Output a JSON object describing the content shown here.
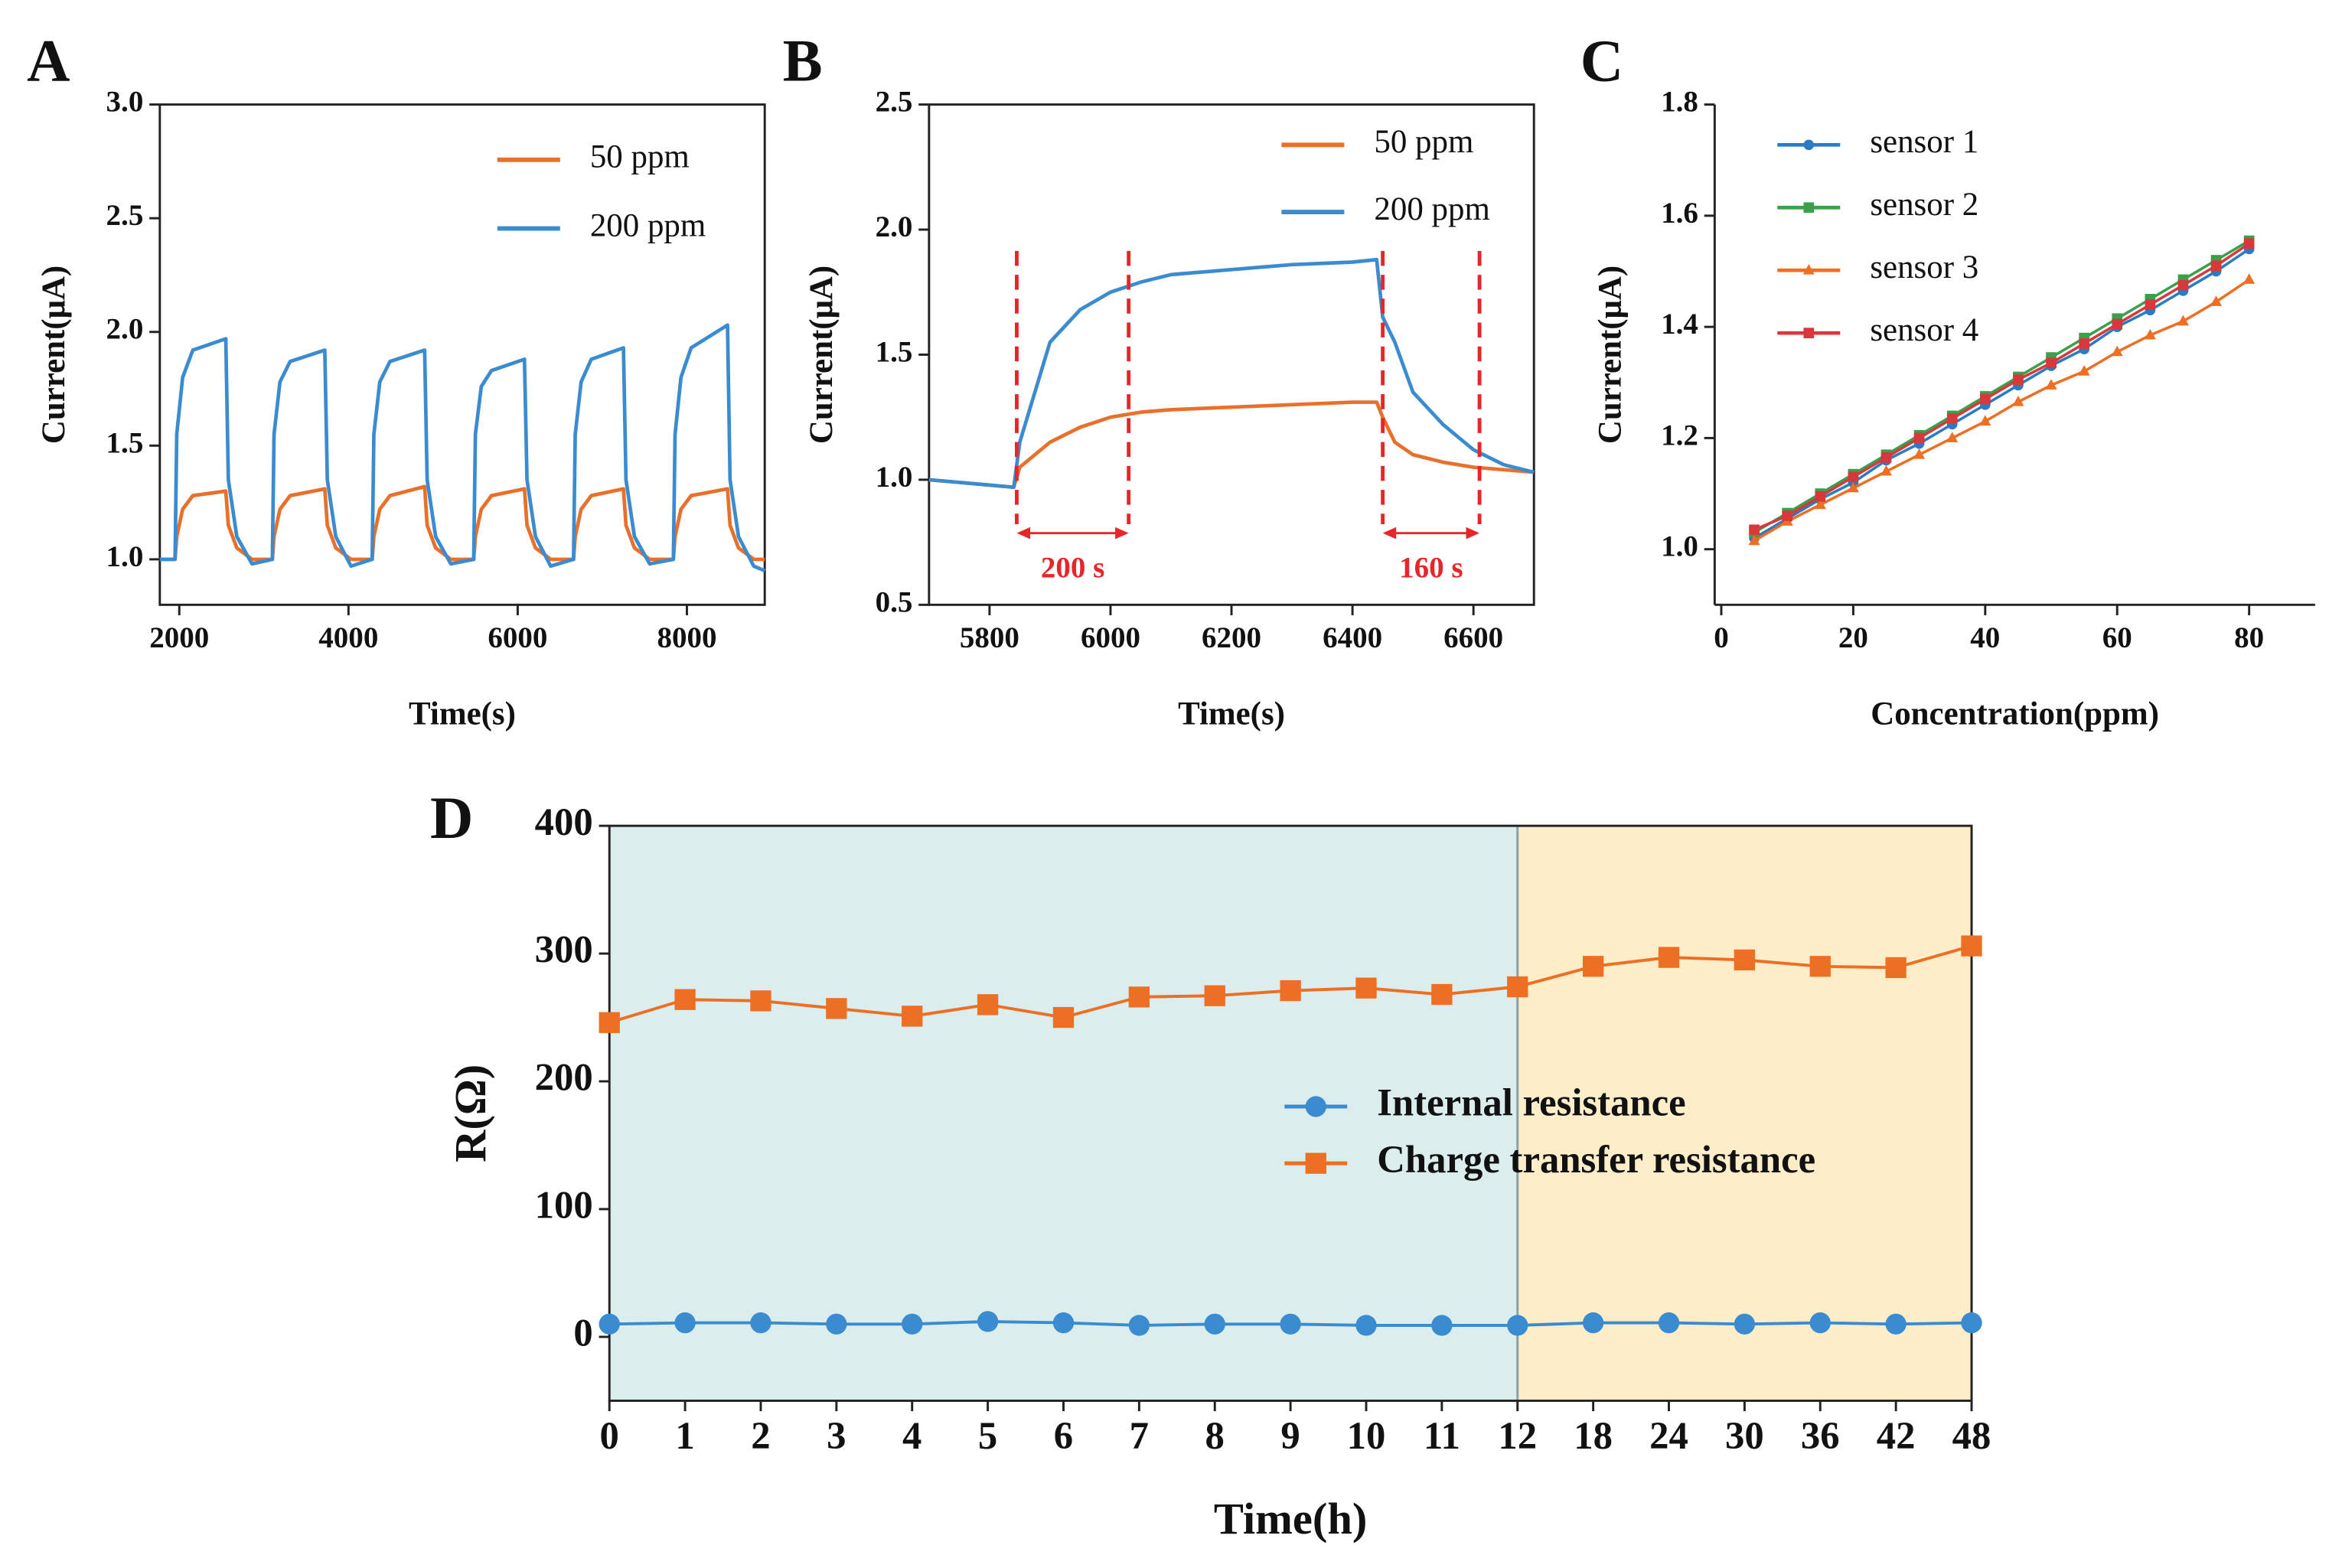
{
  "chart_data": [
    {
      "type": "line",
      "label": "A",
      "xlabel": "Time(s)",
      "ylabel": "Current(μA)",
      "xlim": [
        1770,
        8920
      ],
      "xticks": [
        2000,
        4000,
        6000,
        8000
      ],
      "ylim": [
        0.8,
        3.0
      ],
      "yticks": [
        {
          "value": 1,
          "label": "1.0"
        },
        1.5,
        {
          "value": 2,
          "label": "2.0"
        },
        2.5,
        {
          "value": 3,
          "label": "3.0"
        }
      ],
      "x": [
        1770,
        1950,
        1970,
        2040,
        2160,
        2550,
        2580,
        2680,
        2860,
        3100,
        3120,
        3190,
        3310,
        3720,
        3750,
        3850,
        4030,
        4280,
        4300,
        4370,
        4490,
        4900,
        4930,
        5030,
        5210,
        5480,
        5500,
        5570,
        5690,
        6080,
        6110,
        6210,
        6390,
        6660,
        6680,
        6750,
        6870,
        7250,
        7280,
        7380,
        7560,
        7840,
        7860,
        7930,
        8050,
        8480,
        8510,
        8610,
        8790,
        8920
      ],
      "series": [
        {
          "name": "50 ppm",
          "color": "#e8702a",
          "values": [
            1.0,
            1.0,
            1.1,
            1.22,
            1.28,
            1.3,
            1.15,
            1.05,
            1.0,
            1.0,
            1.1,
            1.22,
            1.28,
            1.31,
            1.15,
            1.05,
            1.0,
            1.0,
            1.1,
            1.22,
            1.28,
            1.32,
            1.15,
            1.05,
            1.0,
            1.0,
            1.1,
            1.22,
            1.28,
            1.31,
            1.15,
            1.05,
            1.0,
            1.0,
            1.1,
            1.22,
            1.28,
            1.31,
            1.15,
            1.05,
            1.0,
            1.0,
            1.1,
            1.22,
            1.28,
            1.31,
            1.15,
            1.05,
            1.0,
            1.0
          ]
        },
        {
          "name": "200 ppm",
          "color": "#3b8bd0",
          "values": [
            1.0,
            1.0,
            1.55,
            1.8,
            1.92,
            1.97,
            1.35,
            1.1,
            0.98,
            1.0,
            1.55,
            1.78,
            1.87,
            1.92,
            1.35,
            1.1,
            0.97,
            1.0,
            1.55,
            1.78,
            1.87,
            1.92,
            1.35,
            1.1,
            0.98,
            1.0,
            1.55,
            1.76,
            1.83,
            1.88,
            1.35,
            1.1,
            0.97,
            1.0,
            1.55,
            1.78,
            1.88,
            1.93,
            1.35,
            1.1,
            0.98,
            1.0,
            1.55,
            1.8,
            1.93,
            2.03,
            1.35,
            1.1,
            0.97,
            0.95
          ]
        }
      ]
    },
    {
      "type": "line",
      "label": "B",
      "xlabel": "Time(s)",
      "ylabel": "Current(μA)",
      "xlim": [
        5700,
        6700
      ],
      "xticks": [
        5800,
        6000,
        6200,
        6400,
        6600
      ],
      "ylim": [
        0.5,
        2.5
      ],
      "yticks": [
        0.5,
        {
          "value": 1,
          "label": "1.0"
        },
        1.5,
        {
          "value": 2,
          "label": "2.0"
        },
        2.5
      ],
      "x": [
        5700,
        5840,
        5850,
        5900,
        5950,
        6000,
        6050,
        6100,
        6200,
        6300,
        6400,
        6440,
        6450,
        6470,
        6500,
        6550,
        6600,
        6650,
        6700
      ],
      "series": [
        {
          "name": "50 ppm",
          "color": "#e8702a",
          "values": [
            1.0,
            0.97,
            1.05,
            1.15,
            1.21,
            1.25,
            1.27,
            1.28,
            1.29,
            1.3,
            1.31,
            1.31,
            1.25,
            1.15,
            1.1,
            1.07,
            1.05,
            1.04,
            1.03
          ]
        },
        {
          "name": "200 ppm",
          "color": "#3b8bd0",
          "values": [
            1.0,
            0.97,
            1.15,
            1.55,
            1.68,
            1.75,
            1.79,
            1.82,
            1.84,
            1.86,
            1.87,
            1.88,
            1.65,
            1.55,
            1.35,
            1.22,
            1.12,
            1.06,
            1.03
          ]
        }
      ],
      "annotations": [
        {
          "text": "200 s",
          "x1": 5845,
          "x2": 6030,
          "color": "#e8262a"
        },
        {
          "text": "160 s",
          "x1": 6450,
          "x2": 6610,
          "color": "#e8262a"
        }
      ]
    },
    {
      "type": "line",
      "label": "C",
      "xlabel": "Concentration(ppm)",
      "ylabel": "Current(μA)",
      "xlim": [
        -1,
        90
      ],
      "xticks": [
        0,
        20,
        40,
        60,
        80
      ],
      "ylim": [
        0.9,
        1.8
      ],
      "yticks": [
        {
          "value": 1,
          "label": "1.0"
        },
        1.2,
        1.4,
        1.6,
        1.8
      ],
      "x": [
        5,
        10,
        15,
        20,
        25,
        30,
        35,
        40,
        45,
        50,
        55,
        60,
        65,
        70,
        75,
        80
      ],
      "series": [
        {
          "name": "sensor 1",
          "color": "#2b7bc4",
          "marker": "circle",
          "values": [
            1.02,
            1.055,
            1.09,
            1.12,
            1.16,
            1.19,
            1.225,
            1.26,
            1.295,
            1.33,
            1.36,
            1.4,
            1.43,
            1.465,
            1.5,
            1.54
          ]
        },
        {
          "name": "sensor 2",
          "color": "#3aa04a",
          "marker": "square",
          "values": [
            1.03,
            1.065,
            1.1,
            1.135,
            1.17,
            1.205,
            1.24,
            1.275,
            1.31,
            1.345,
            1.38,
            1.415,
            1.45,
            1.485,
            1.52,
            1.555
          ]
        },
        {
          "name": "sensor 3",
          "color": "#ec6f23",
          "marker": "triangle",
          "values": [
            1.015,
            1.05,
            1.08,
            1.11,
            1.14,
            1.17,
            1.2,
            1.23,
            1.265,
            1.295,
            1.32,
            1.355,
            1.385,
            1.41,
            1.445,
            1.485
          ]
        },
        {
          "name": "sensor 4",
          "color": "#d8383c",
          "marker": "square",
          "values": [
            1.035,
            1.06,
            1.095,
            1.13,
            1.165,
            1.2,
            1.235,
            1.27,
            1.305,
            1.335,
            1.37,
            1.405,
            1.44,
            1.475,
            1.51,
            1.55
          ]
        }
      ]
    },
    {
      "type": "line",
      "label": "D",
      "xlabel": "Time(h)",
      "ylabel": "R(Ω)",
      "categories": [
        "0",
        "1",
        "2",
        "3",
        "4",
        "5",
        "6",
        "7",
        "8",
        "9",
        "10",
        "11",
        "12",
        "18",
        "24",
        "30",
        "36",
        "42",
        "48"
      ],
      "ylim": [
        -50,
        400
      ],
      "yticks": [
        0,
        100,
        200,
        300,
        400
      ],
      "regions": [
        {
          "start": "0",
          "end": "12",
          "color": "#dcedee"
        },
        {
          "start": "12",
          "end": "48",
          "color": "#fdeec9"
        }
      ],
      "series": [
        {
          "name": "Internal resistance",
          "color": "#3a8bd0",
          "marker": "circle",
          "values": [
            10,
            11,
            11,
            10,
            10,
            12,
            11,
            9,
            10,
            10,
            9,
            9,
            9,
            11,
            11,
            10,
            11,
            10,
            11
          ]
        },
        {
          "name": "Charge transfer resistance",
          "color": "#ec6f23",
          "marker": "square",
          "values": [
            246,
            264,
            263,
            257,
            251,
            260,
            250,
            266,
            267,
            271,
            273,
            268,
            274,
            290,
            297,
            295,
            290,
            289,
            306
          ]
        }
      ]
    }
  ]
}
